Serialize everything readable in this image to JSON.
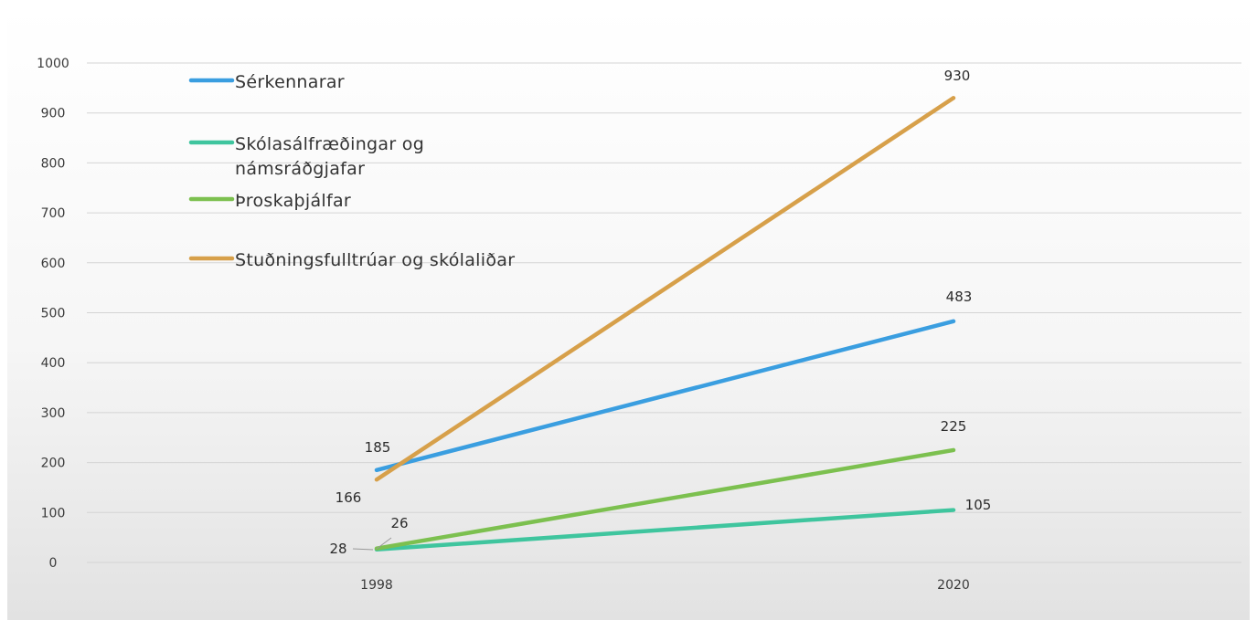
{
  "chart_data": {
    "type": "line",
    "title": "",
    "xlabel": "",
    "ylabel": "",
    "categories": [
      "1998",
      "2020"
    ],
    "ylim": [
      0,
      1000
    ],
    "yticks": [
      0,
      100,
      200,
      300,
      400,
      500,
      600,
      700,
      800,
      900,
      1000
    ],
    "grid": true,
    "legend_position": "top-left, inside plot",
    "series": [
      {
        "name": "Sérkennarar",
        "values": [
          185,
          483
        ],
        "color": "#3a9ee0",
        "labels": [
          "185",
          "483"
        ]
      },
      {
        "name": "Skólasálfræðingar og námsráðgjafar",
        "name_lines": [
          "Skólasálfræðingar og",
          "námsráðgjafar"
        ],
        "values": [
          26,
          105
        ],
        "color": "#3fc59e",
        "labels": [
          "26",
          "105"
        ]
      },
      {
        "name": "Þroskaþjálfar",
        "values": [
          28,
          225
        ],
        "color": "#7cc04f",
        "labels": [
          "28",
          "225"
        ]
      },
      {
        "name": "Stuðningsfulltrúar og skólaliðar",
        "values": [
          166,
          930
        ],
        "color": "#d7a04a",
        "labels": [
          "166",
          "930"
        ]
      }
    ]
  }
}
